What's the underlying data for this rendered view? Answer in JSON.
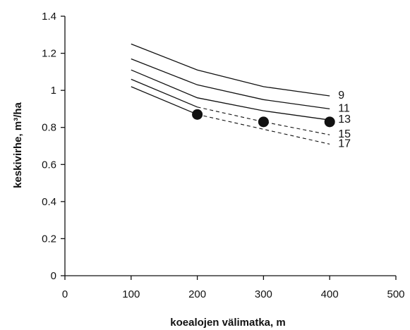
{
  "chart_data": {
    "type": "line",
    "title": "",
    "xlabel": "koealojen välimatka, m",
    "ylabel": "keskivirhe, m³/ha",
    "xlim": [
      0,
      500
    ],
    "ylim": [
      0,
      1.4
    ],
    "x_ticks": [
      "0",
      "100",
      "200",
      "300",
      "400",
      "500"
    ],
    "y_ticks": [
      "0",
      "0.2",
      "0.4",
      "0.6",
      "0.8",
      "1",
      "1.2",
      "1.4"
    ],
    "grid": false,
    "legend": "none",
    "line_color": "#111111",
    "series": [
      {
        "name": "9",
        "solid": [
          [
            100,
            1.25
          ],
          [
            200,
            1.11
          ],
          [
            300,
            1.02
          ],
          [
            400,
            0.97
          ]
        ],
        "dashed": []
      },
      {
        "name": "11",
        "solid": [
          [
            100,
            1.17
          ],
          [
            200,
            1.03
          ],
          [
            300,
            0.95
          ],
          [
            400,
            0.9
          ]
        ],
        "dashed": []
      },
      {
        "name": "13",
        "solid": [
          [
            100,
            1.11
          ],
          [
            200,
            0.96
          ],
          [
            300,
            0.89
          ],
          [
            400,
            0.84
          ]
        ],
        "dashed": []
      },
      {
        "name": "15",
        "solid": [
          [
            100,
            1.06
          ],
          [
            200,
            0.91
          ]
        ],
        "dashed": [
          [
            200,
            0.91
          ],
          [
            300,
            0.83
          ],
          [
            400,
            0.76
          ]
        ]
      },
      {
        "name": "17",
        "solid": [
          [
            100,
            1.02
          ],
          [
            200,
            0.87
          ]
        ],
        "dashed": [
          [
            200,
            0.87
          ],
          [
            300,
            0.79
          ],
          [
            400,
            0.71
          ]
        ]
      }
    ],
    "markers": [
      [
        200,
        0.87
      ],
      [
        300,
        0.83
      ],
      [
        400,
        0.83
      ]
    ]
  }
}
